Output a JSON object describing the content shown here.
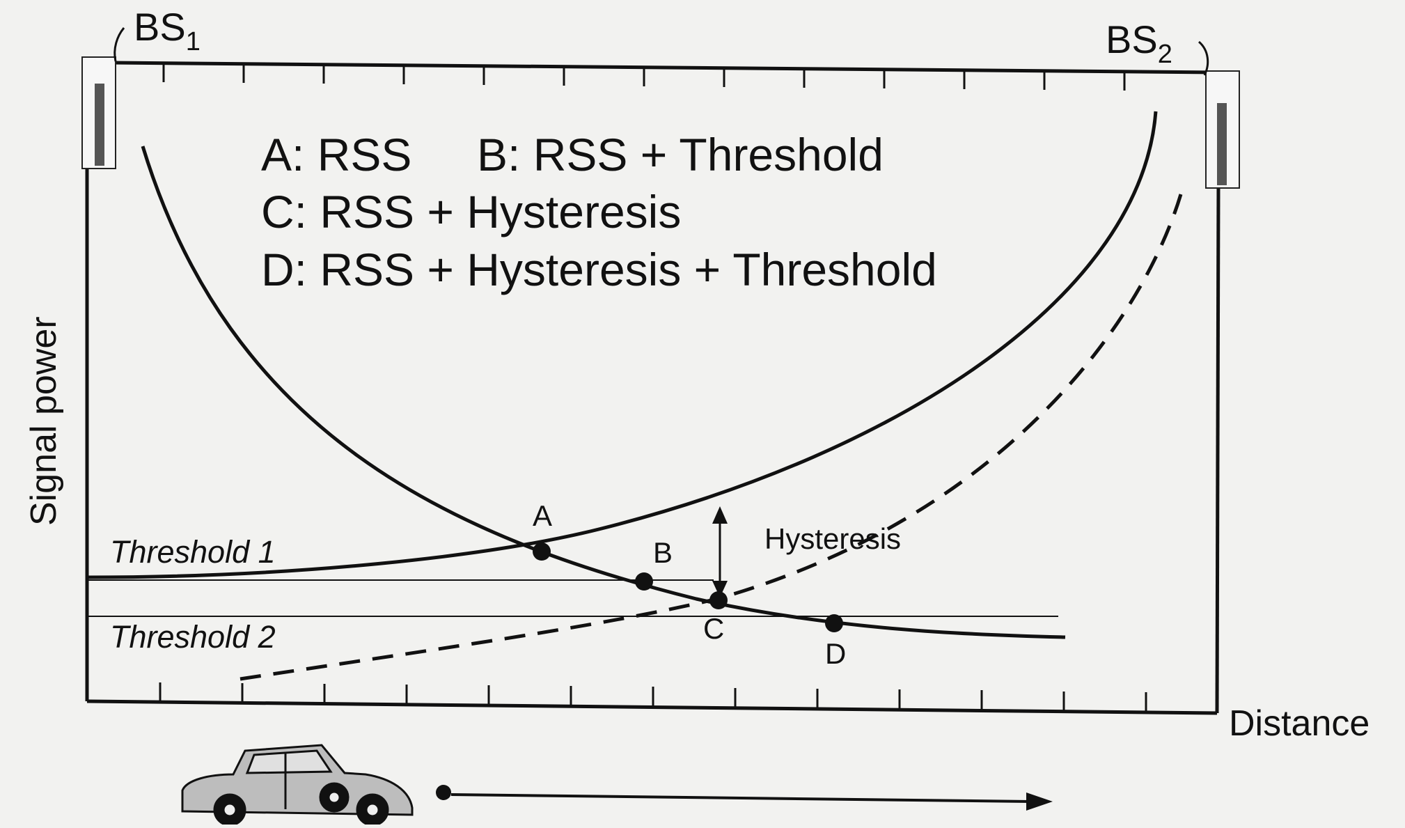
{
  "stations": {
    "bs1": {
      "label": "BS",
      "sub": "1"
    },
    "bs2": {
      "label": "BS",
      "sub": "2"
    }
  },
  "legend": {
    "a": "A: RSS",
    "b": "B: RSS + Threshold",
    "c": "C: RSS + Hysteresis",
    "d": "D: RSS + Hysteresis + Threshold"
  },
  "axes": {
    "y_label": "Signal power",
    "x_label": "Distance"
  },
  "thresholds": {
    "t1": "Threshold 1",
    "t2": "Threshold 2"
  },
  "points": {
    "a": "A",
    "b": "B",
    "c": "C",
    "d": "D"
  },
  "hysteresis_label": "Hysteresis",
  "colors": {
    "ink": "#111111",
    "paper": "#f2f2f0",
    "tower": "#555555"
  }
}
